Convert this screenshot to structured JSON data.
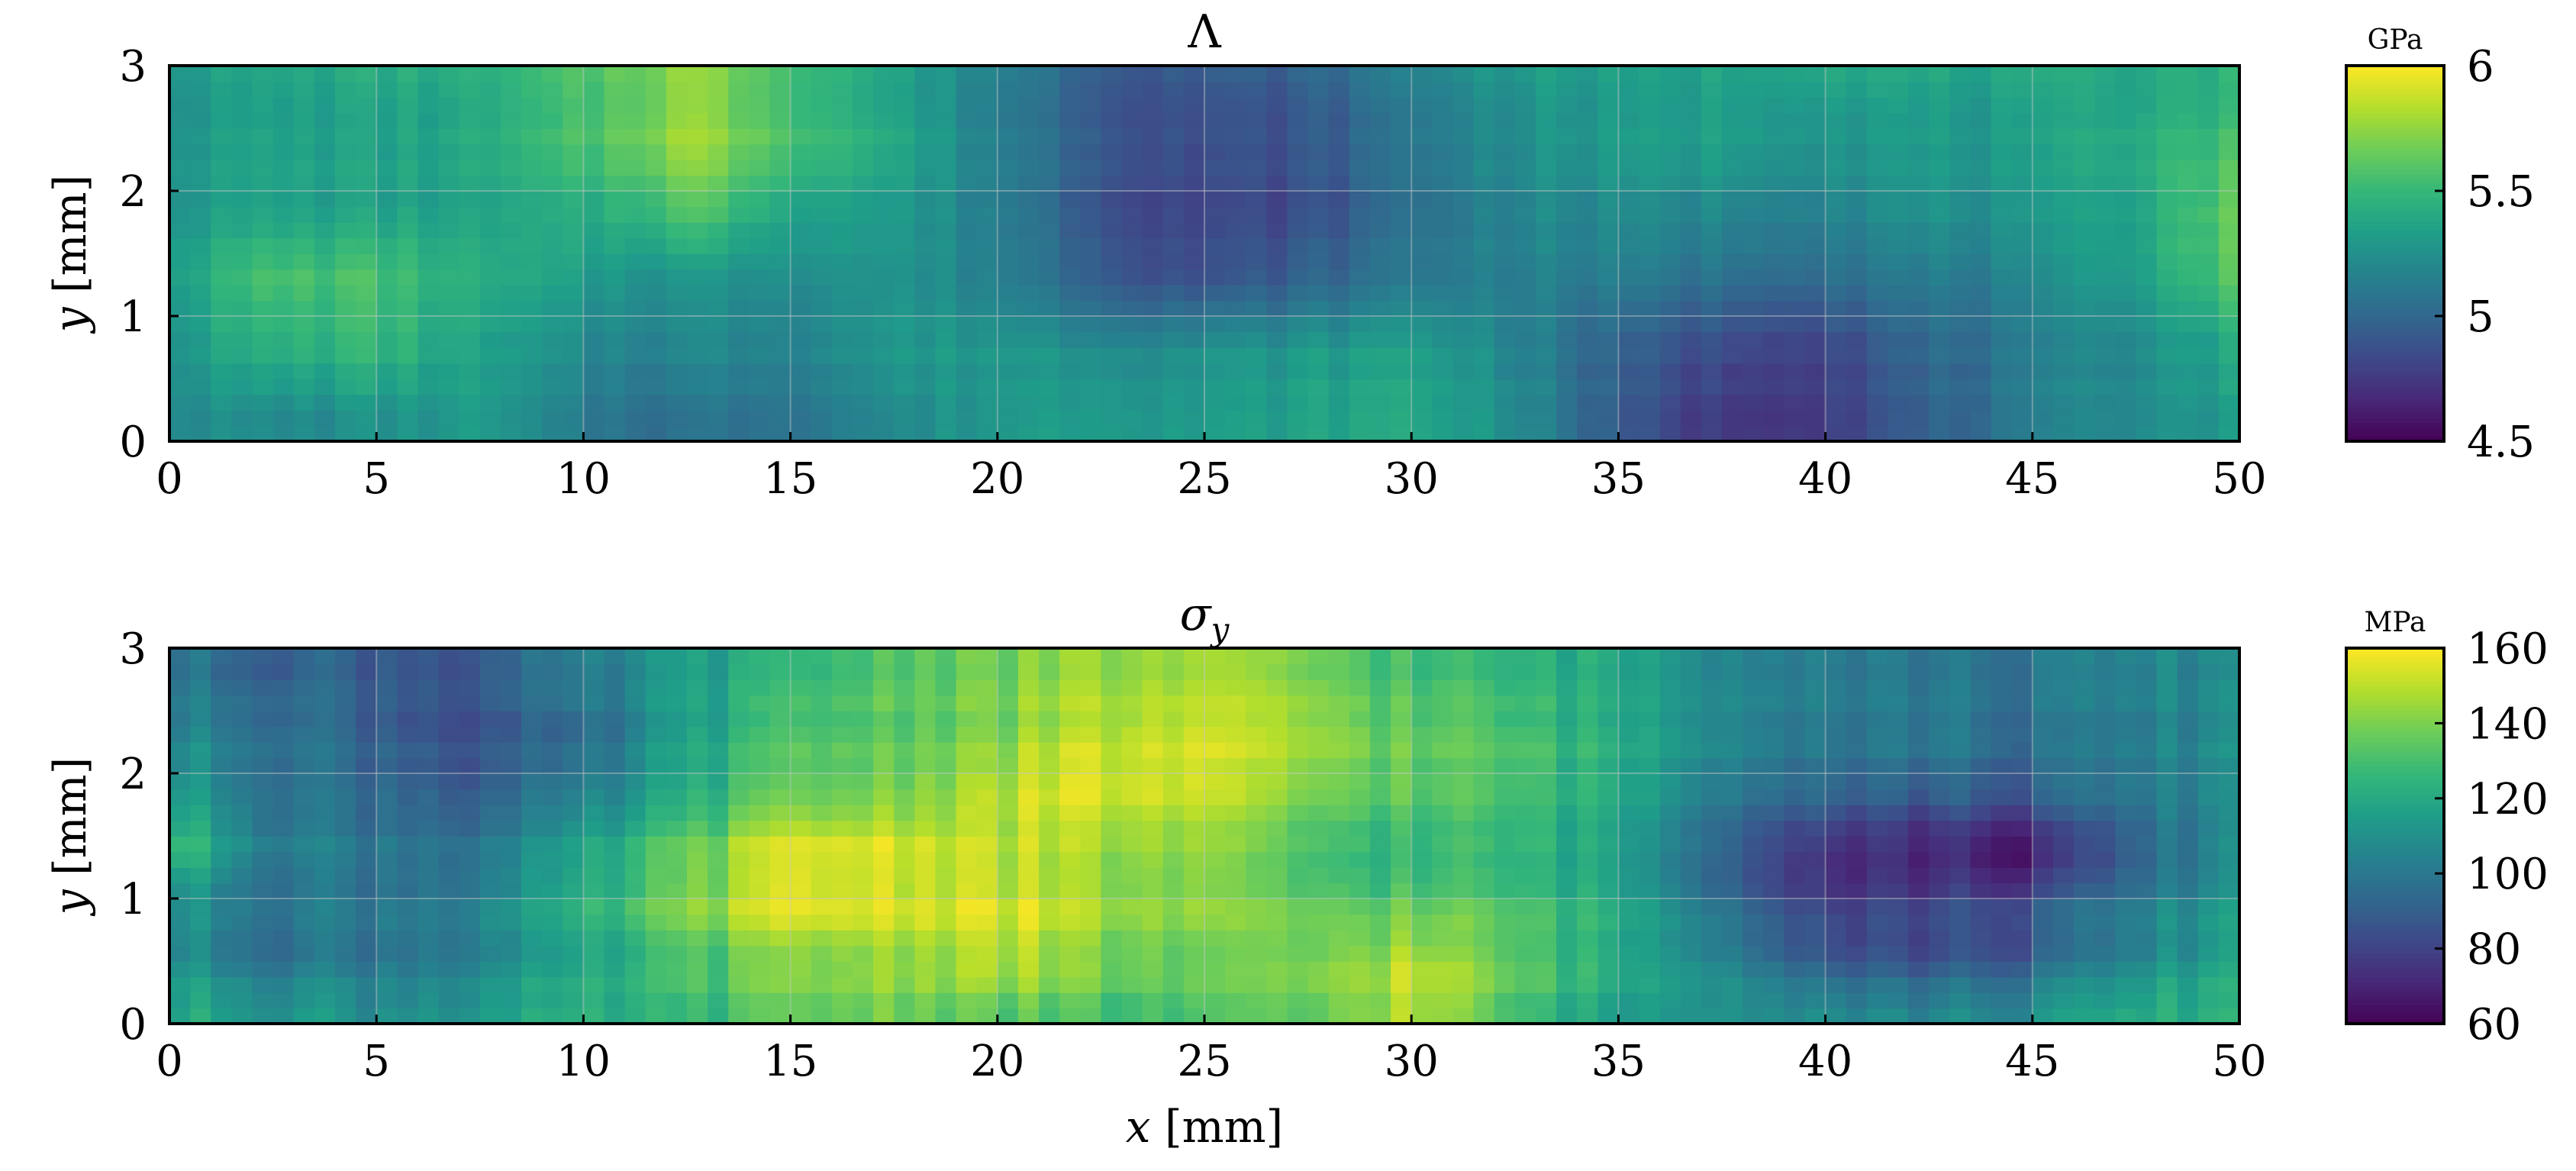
{
  "chart_data": [
    {
      "type": "heatmap",
      "title": "Λ",
      "xlabel": "",
      "ylabel_var": "y",
      "ylabel_unit": "[mm]",
      "xlim": [
        0,
        50
      ],
      "ylim": [
        0,
        3
      ],
      "xticks": [
        "0",
        "5",
        "10",
        "15",
        "20",
        "25",
        "30",
        "35",
        "40",
        "45",
        "50"
      ],
      "yticks": [
        "0",
        "1",
        "2",
        "3"
      ],
      "colorbar": {
        "unit": "GPa",
        "min": 4.5,
        "max": 6,
        "ticks": [
          "4.5",
          "5",
          "5.5",
          "6"
        ],
        "colormap": "viridis"
      },
      "grid_x": [
        0,
        2.5,
        5,
        7.5,
        10,
        12.5,
        15,
        17.5,
        20,
        22.5,
        25,
        27.5,
        30,
        32.5,
        35,
        37.5,
        40,
        42.5,
        45,
        47.5,
        50
      ],
      "grid_y": [
        0.2,
        0.75,
        1.3,
        1.85,
        2.4,
        2.9
      ],
      "values": [
        [
          5.25,
          5.2,
          5.25,
          5.3,
          5.1,
          5.05,
          5.1,
          5.2,
          5.3,
          5.35,
          5.3,
          5.35,
          5.4,
          5.25,
          4.9,
          4.75,
          4.8,
          4.95,
          5.1,
          5.25,
          5.3
        ],
        [
          5.3,
          5.45,
          5.5,
          5.35,
          5.2,
          5.2,
          5.2,
          5.3,
          5.3,
          5.25,
          5.25,
          5.3,
          5.35,
          5.2,
          4.95,
          4.85,
          4.85,
          5.0,
          5.1,
          5.25,
          5.4
        ],
        [
          5.35,
          5.55,
          5.55,
          5.4,
          5.3,
          5.25,
          5.25,
          5.25,
          5.15,
          4.95,
          4.85,
          4.95,
          5.1,
          5.15,
          5.1,
          5.05,
          5.05,
          5.1,
          5.15,
          5.35,
          5.6
        ],
        [
          5.3,
          5.35,
          5.35,
          5.35,
          5.4,
          5.6,
          5.4,
          5.3,
          5.15,
          4.9,
          4.8,
          4.85,
          5.05,
          5.2,
          5.2,
          5.2,
          5.2,
          5.25,
          5.25,
          5.4,
          5.65
        ],
        [
          5.3,
          5.35,
          5.35,
          5.4,
          5.55,
          5.8,
          5.6,
          5.4,
          5.15,
          4.95,
          4.85,
          4.9,
          5.1,
          5.25,
          5.3,
          5.35,
          5.3,
          5.3,
          5.3,
          5.45,
          5.55
        ],
        [
          5.3,
          5.35,
          5.4,
          5.4,
          5.55,
          5.75,
          5.55,
          5.35,
          5.15,
          4.95,
          4.9,
          4.95,
          5.15,
          5.3,
          5.3,
          5.35,
          5.4,
          5.35,
          5.35,
          5.4,
          5.45
        ]
      ]
    },
    {
      "type": "heatmap",
      "title": "σy",
      "xlabel_var": "x",
      "xlabel_unit": "[mm]",
      "ylabel_var": "y",
      "ylabel_unit": "[mm]",
      "xlim": [
        0,
        50
      ],
      "ylim": [
        0,
        3
      ],
      "xticks": [
        "0",
        "5",
        "10",
        "15",
        "20",
        "25",
        "30",
        "35",
        "40",
        "45",
        "50"
      ],
      "yticks": [
        "0",
        "1",
        "2",
        "3"
      ],
      "colorbar": {
        "unit": "MPa",
        "min": 60,
        "max": 160,
        "ticks": [
          "60",
          "80",
          "100",
          "120",
          "140",
          "160"
        ],
        "colormap": "viridis"
      },
      "grid_x": [
        0,
        2.5,
        5,
        7.5,
        10,
        12.5,
        15,
        17.5,
        20,
        22.5,
        25,
        27.5,
        30,
        32.5,
        35,
        37.5,
        40,
        42.5,
        45,
        47.5,
        50
      ],
      "grid_y": [
        0.1,
        0.5,
        0.95,
        1.4,
        1.85,
        2.3,
        2.8
      ],
      "values": [
        [
          120,
          115,
          110,
          115,
          120,
          125,
          135,
          140,
          135,
          130,
          130,
          135,
          150,
          130,
          115,
          115,
          110,
          105,
          110,
          120,
          125
        ],
        [
          110,
          100,
          100,
          105,
          115,
          130,
          140,
          145,
          150,
          140,
          135,
          140,
          150,
          135,
          120,
          110,
          90,
          85,
          90,
          105,
          120
        ],
        [
          110,
          100,
          100,
          105,
          120,
          140,
          155,
          155,
          155,
          145,
          140,
          135,
          135,
          130,
          120,
          100,
          80,
          80,
          85,
          100,
          115
        ],
        [
          130,
          105,
          100,
          100,
          115,
          135,
          155,
          155,
          150,
          145,
          140,
          130,
          125,
          125,
          115,
          95,
          75,
          70,
          65,
          90,
          110
        ],
        [
          115,
          100,
          95,
          90,
          100,
          120,
          135,
          140,
          150,
          155,
          150,
          140,
          135,
          130,
          120,
          105,
          95,
          90,
          90,
          100,
          110
        ],
        [
          105,
          100,
          90,
          85,
          90,
          115,
          130,
          135,
          140,
          150,
          150,
          145,
          135,
          130,
          120,
          110,
          100,
          100,
          95,
          100,
          110
        ],
        [
          100,
          95,
          90,
          90,
          100,
          115,
          125,
          135,
          140,
          145,
          145,
          140,
          130,
          125,
          120,
          110,
          105,
          100,
          100,
          105,
          110
        ]
      ]
    }
  ]
}
